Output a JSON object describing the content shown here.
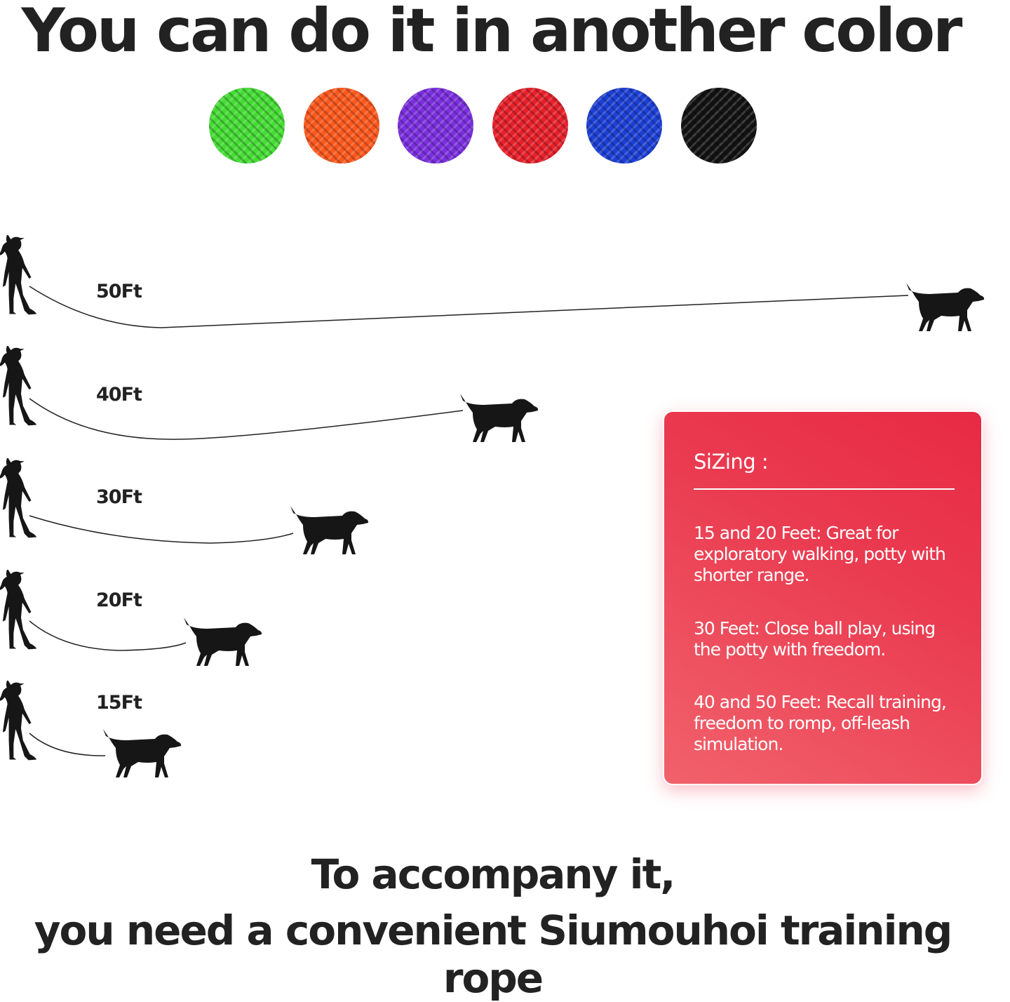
{
  "header": {
    "title": "You can do it in another color"
  },
  "colors": [
    {
      "name": "green",
      "hex": "#45dd34"
    },
    {
      "name": "orange",
      "hex": "#ff581c"
    },
    {
      "name": "purple",
      "hex": "#7b2fe0"
    },
    {
      "name": "red",
      "hex": "#e8202a"
    },
    {
      "name": "blue",
      "hex": "#1c3fd6"
    },
    {
      "name": "black",
      "hex": "#121212"
    }
  ],
  "lengths": [
    "50Ft",
    "40Ft",
    "30Ft",
    "20Ft",
    "15Ft"
  ],
  "sizing": {
    "title": "SiZing :",
    "items": [
      "15 and 20 Feet: Great for exploratory walking, potty with shorter range.",
      "30 Feet: Close ball play, using the potty with freedom.",
      "40 and 50 Feet: Recall training, freedom to romp, off-leash simulation."
    ]
  },
  "footer": {
    "line1": "To accompany it,",
    "line2": "you need a convenient Siumouhoi training rope"
  }
}
